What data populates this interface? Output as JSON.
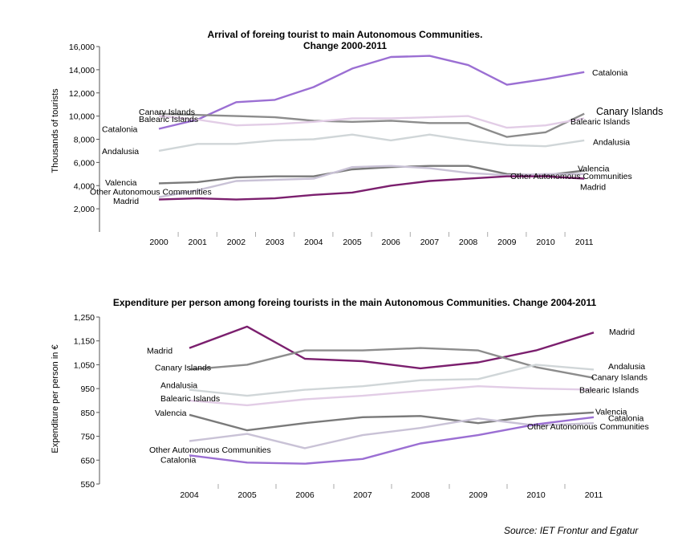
{
  "source": "Source: IET Frontur and Egatur",
  "colors": {
    "Catalonia": "#9b6fd3",
    "Canary Islands": "#8c8c8c",
    "Balearic Islands": "#e2cde6",
    "Andalusia": "#d0d6d8",
    "Valencia": "#7a7a7a",
    "Other Autonomous Communities": "#c9c2d6",
    "Madrid": "#7b1f6e"
  },
  "chart_data": [
    {
      "type": "line",
      "title": "Arrival of foreing tourist to main Autonomous Communities.",
      "subtitle": "Change 2000-2011",
      "ylabel": "Thousands of tourists",
      "xlabel": "",
      "ylim": [
        0,
        16000
      ],
      "yticks": [
        "2,000",
        "4,000",
        "6,000",
        "8,000",
        "10,000",
        "12,000",
        "14,000",
        "16,000"
      ],
      "x": [
        "2000",
        "2001",
        "2002",
        "2003",
        "2004",
        "2005",
        "2006",
        "2007",
        "2008",
        "2009",
        "2010",
        "2011"
      ],
      "grid": false,
      "series": [
        {
          "name": "Catalonia",
          "values": [
            8900,
            9700,
            11200,
            11400,
            12500,
            14100,
            15100,
            15200,
            14400,
            12700,
            13200,
            13800
          ]
        },
        {
          "name": "Canary Islands",
          "values": [
            10200,
            10100,
            10000,
            9900,
            9600,
            9500,
            9600,
            9400,
            9400,
            8200,
            8600,
            10200
          ]
        },
        {
          "name": "Balearic Islands",
          "values": [
            10000,
            9700,
            9200,
            9300,
            9500,
            9800,
            9800,
            9900,
            10000,
            9000,
            9200,
            9800
          ]
        },
        {
          "name": "Andalusia",
          "values": [
            7000,
            7600,
            7600,
            7900,
            8000,
            8400,
            7900,
            8400,
            7900,
            7500,
            7400,
            7900
          ]
        },
        {
          "name": "Valencia",
          "values": [
            4200,
            4300,
            4700,
            4800,
            4800,
            5400,
            5600,
            5700,
            5700,
            5000,
            4900,
            5300
          ]
        },
        {
          "name": "Other Autonomous Communities",
          "values": [
            3000,
            3600,
            4400,
            4500,
            4600,
            5600,
            5700,
            5500,
            5100,
            4900,
            5000,
            5000
          ]
        },
        {
          "name": "Madrid",
          "values": [
            2800,
            2900,
            2800,
            2900,
            3200,
            3400,
            4000,
            4400,
            4600,
            4800,
            4800,
            4600
          ]
        }
      ],
      "left_labels": [
        {
          "text": "Canary Islands",
          "y": 10400
        },
        {
          "text": "Balearic Islands",
          "y": 9750
        },
        {
          "text": "Catalonia",
          "y": 8900
        },
        {
          "text": "Andalusia",
          "y": 7000
        },
        {
          "text": "Valencia",
          "y": 4300
        },
        {
          "text": "Other Autonomous Communities",
          "y": 3500
        },
        {
          "text": "Madrid",
          "y": 2700
        }
      ],
      "right_labels": [
        {
          "text": "Catalonia",
          "y": 13800
        },
        {
          "text": "Canary Islands",
          "y": 10400
        },
        {
          "text": "Balearic Islands",
          "y": 9550
        },
        {
          "text": "Andalusia",
          "y": 7800
        },
        {
          "text": "Valencia",
          "y": 5500
        },
        {
          "text": "Other Autonomous Communities",
          "y": 4850
        },
        {
          "text": "Madrid",
          "y": 3900
        }
      ]
    },
    {
      "type": "line",
      "title": "Expenditure per person among foreing tourists in the main Autonomous Communities. Change 2004-2011",
      "subtitle": "",
      "ylabel": "Expenditure per person in €",
      "xlabel": "",
      "ylim": [
        550,
        1250
      ],
      "yticks": [
        "550",
        "650",
        "750",
        "850",
        "950",
        "1,050",
        "1,150",
        "1,250"
      ],
      "x": [
        "2004",
        "2005",
        "2006",
        "2007",
        "2008",
        "2009",
        "2010",
        "2011"
      ],
      "grid": false,
      "series": [
        {
          "name": "Madrid",
          "values": [
            1120,
            1210,
            1075,
            1065,
            1035,
            1060,
            1110,
            1185
          ]
        },
        {
          "name": "Canary Islands",
          "values": [
            1030,
            1050,
            1110,
            1110,
            1120,
            1110,
            1040,
            995
          ]
        },
        {
          "name": "Andalusia",
          "values": [
            945,
            920,
            945,
            960,
            985,
            990,
            1050,
            1030
          ]
        },
        {
          "name": "Balearic Islands",
          "values": [
            900,
            880,
            905,
            920,
            940,
            960,
            950,
            945
          ]
        },
        {
          "name": "Valencia",
          "values": [
            840,
            775,
            805,
            830,
            835,
            805,
            835,
            850
          ]
        },
        {
          "name": "Other Autonomous Communities",
          "values": [
            730,
            760,
            700,
            755,
            785,
            825,
            795,
            805
          ]
        },
        {
          "name": "Catalonia",
          "values": [
            670,
            640,
            635,
            655,
            720,
            755,
            800,
            830
          ]
        }
      ],
      "left_labels": [
        {
          "text": "Madrid",
          "y": 1110
        },
        {
          "text": "Canary Islands",
          "y": 1040
        },
        {
          "text": "Andalusia",
          "y": 965
        },
        {
          "text": "Balearic Islands",
          "y": 910
        },
        {
          "text": "Valencia",
          "y": 850
        },
        {
          "text": "Other Autonomous Communities",
          "y": 695
        },
        {
          "text": "Catalonia",
          "y": 652
        }
      ],
      "right_labels": [
        {
          "text": "Madrid",
          "y": 1190
        },
        {
          "text": "Andalusia",
          "y": 1045
        },
        {
          "text": "Canary Islands",
          "y": 1000
        },
        {
          "text": "Balearic Islands",
          "y": 945
        },
        {
          "text": "Valencia",
          "y": 855
        },
        {
          "text": "Catalonia",
          "y": 828
        },
        {
          "text": "Other Autonomous Communities",
          "y": 792
        }
      ]
    }
  ]
}
